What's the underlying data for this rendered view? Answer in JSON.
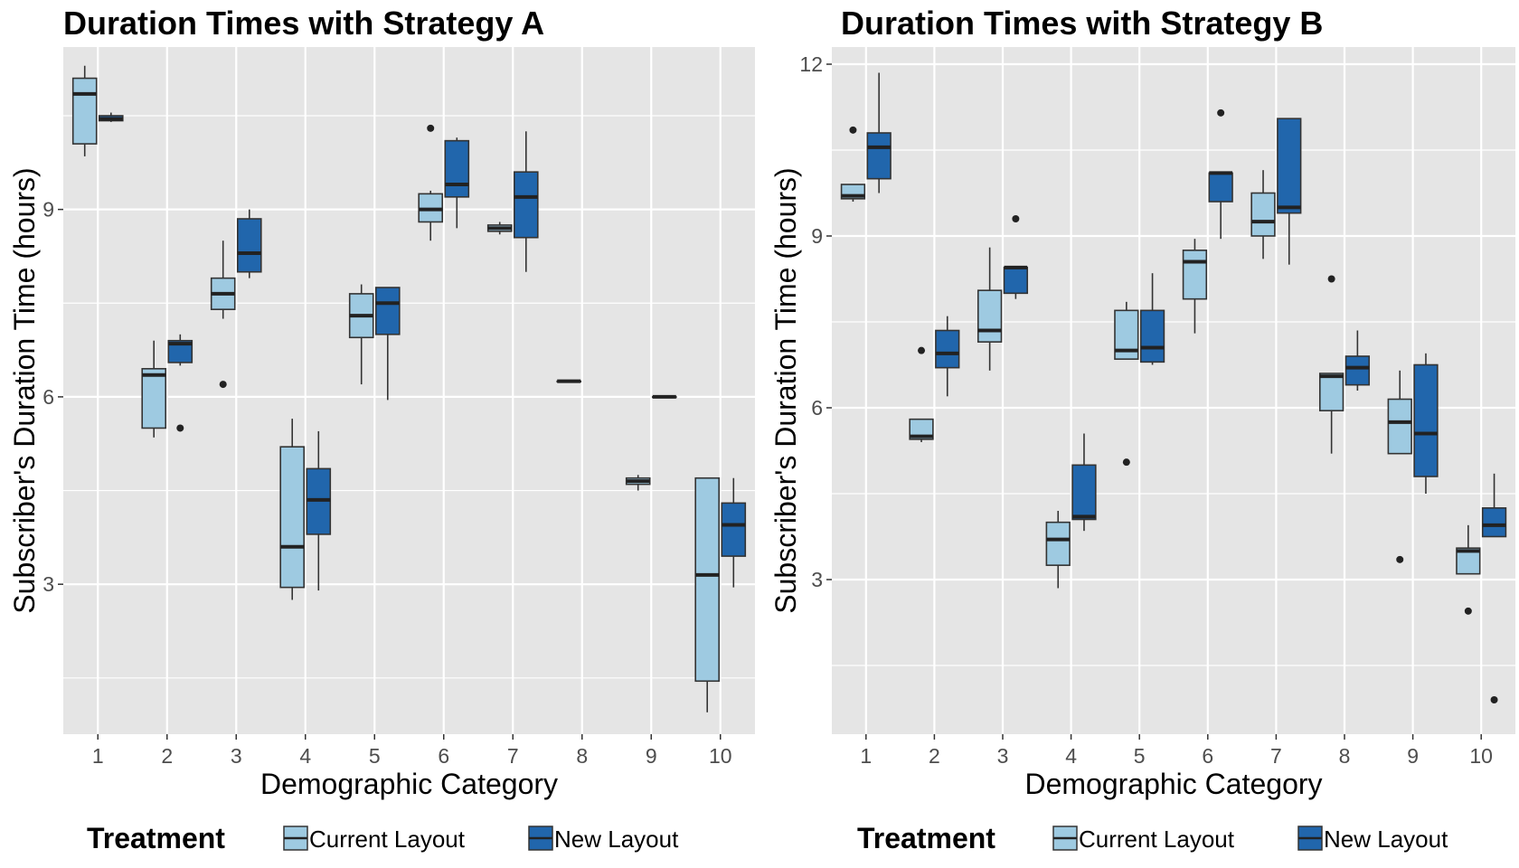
{
  "chart_data": [
    {
      "type": "box",
      "title": "Duration Times with Strategy A",
      "xlabel": "Demographic Category",
      "ylabel": "Subscriber's Duration Time (hours)",
      "ylim": [
        0.6,
        11.6
      ],
      "y_ticks": [
        3,
        6,
        9
      ],
      "grid": true,
      "categories": [
        "1",
        "2",
        "3",
        "4",
        "5",
        "6",
        "7",
        "8",
        "9",
        "10"
      ],
      "series": [
        {
          "name": "Current Layout",
          "boxes": [
            {
              "category": "1",
              "min": 9.85,
              "q1": 10.05,
              "median": 10.85,
              "q3": 11.1,
              "max": 11.3,
              "outliers": []
            },
            {
              "category": "2",
              "min": 5.35,
              "q1": 5.5,
              "median": 6.35,
              "q3": 6.45,
              "max": 6.9,
              "outliers": []
            },
            {
              "category": "3",
              "min": 7.25,
              "q1": 7.4,
              "median": 7.65,
              "q3": 7.9,
              "max": 8.5,
              "outliers": [
                6.2
              ]
            },
            {
              "category": "4",
              "min": 2.75,
              "q1": 2.95,
              "median": 3.6,
              "q3": 5.2,
              "max": 5.65,
              "outliers": []
            },
            {
              "category": "5",
              "min": 6.2,
              "q1": 6.95,
              "median": 7.3,
              "q3": 7.65,
              "max": 7.8,
              "outliers": []
            },
            {
              "category": "6",
              "min": 8.5,
              "q1": 8.8,
              "median": 9.0,
              "q3": 9.25,
              "max": 9.3,
              "outliers": [
                10.3
              ]
            },
            {
              "category": "7",
              "min": 8.6,
              "q1": 8.65,
              "median": 8.7,
              "q3": 8.75,
              "max": 8.8,
              "outliers": []
            },
            {
              "category": "8",
              "min": 6.25,
              "q1": 6.25,
              "median": 6.25,
              "q3": 6.25,
              "max": 6.25,
              "outliers": []
            },
            {
              "category": "9",
              "min": 4.5,
              "q1": 4.6,
              "median": 4.65,
              "q3": 4.7,
              "max": 4.75,
              "outliers": []
            },
            {
              "category": "10",
              "min": 0.95,
              "q1": 1.45,
              "median": 3.15,
              "q3": 4.7,
              "max": 4.7,
              "outliers": []
            }
          ]
        },
        {
          "name": "New Layout",
          "boxes": [
            {
              "category": "1",
              "min": 10.4,
              "q1": 10.42,
              "median": 10.45,
              "q3": 10.5,
              "max": 10.55,
              "outliers": []
            },
            {
              "category": "2",
              "min": 6.5,
              "q1": 6.55,
              "median": 6.85,
              "q3": 6.9,
              "max": 7.0,
              "outliers": [
                5.5
              ]
            },
            {
              "category": "3",
              "min": 7.9,
              "q1": 8.0,
              "median": 8.3,
              "q3": 8.85,
              "max": 9.0,
              "outliers": []
            },
            {
              "category": "4",
              "min": 2.9,
              "q1": 3.8,
              "median": 4.35,
              "q3": 4.85,
              "max": 5.45,
              "outliers": []
            },
            {
              "category": "5",
              "min": 5.95,
              "q1": 7.0,
              "median": 7.5,
              "q3": 7.75,
              "max": 7.75,
              "outliers": []
            },
            {
              "category": "6",
              "min": 8.7,
              "q1": 9.2,
              "median": 9.4,
              "q3": 10.1,
              "max": 10.15,
              "outliers": []
            },
            {
              "category": "7",
              "min": 8.0,
              "q1": 8.55,
              "median": 9.2,
              "q3": 9.6,
              "max": 10.25,
              "outliers": []
            },
            {
              "category": "8",
              "min": null,
              "q1": null,
              "median": null,
              "q3": null,
              "max": null,
              "outliers": []
            },
            {
              "category": "9",
              "min": 6.0,
              "q1": 6.0,
              "median": 6.0,
              "q3": 6.0,
              "max": 6.0,
              "outliers": []
            },
            {
              "category": "10",
              "min": 2.95,
              "q1": 3.45,
              "median": 3.95,
              "q3": 4.3,
              "max": 4.7,
              "outliers": []
            }
          ]
        }
      ]
    },
    {
      "type": "box",
      "title": "Duration Times with Strategy B",
      "xlabel": "Demographic Category",
      "ylabel": "Subscriber's Duration Time (hours)",
      "ylim": [
        0.3,
        12.3
      ],
      "y_ticks": [
        3,
        6,
        9,
        12
      ],
      "grid": true,
      "categories": [
        "1",
        "2",
        "3",
        "4",
        "5",
        "6",
        "7",
        "8",
        "9",
        "10"
      ],
      "series": [
        {
          "name": "Current Layout",
          "boxes": [
            {
              "category": "1",
              "min": 9.6,
              "q1": 9.65,
              "median": 9.7,
              "q3": 9.9,
              "max": 9.9,
              "outliers": [
                10.85
              ]
            },
            {
              "category": "2",
              "min": 5.4,
              "q1": 5.45,
              "median": 5.5,
              "q3": 5.8,
              "max": 5.8,
              "outliers": [
                7.0
              ]
            },
            {
              "category": "3",
              "min": 6.65,
              "q1": 7.15,
              "median": 7.35,
              "q3": 8.05,
              "max": 8.8,
              "outliers": []
            },
            {
              "category": "4",
              "min": 2.85,
              "q1": 3.25,
              "median": 3.7,
              "q3": 4.0,
              "max": 4.2,
              "outliers": []
            },
            {
              "category": "5",
              "min": 6.85,
              "q1": 6.85,
              "median": 7.0,
              "q3": 7.7,
              "max": 7.85,
              "outliers": [
                5.05
              ]
            },
            {
              "category": "6",
              "min": 7.3,
              "q1": 7.9,
              "median": 8.55,
              "q3": 8.75,
              "max": 8.95,
              "outliers": []
            },
            {
              "category": "7",
              "min": 8.6,
              "q1": 9.0,
              "median": 9.25,
              "q3": 9.75,
              "max": 10.15,
              "outliers": []
            },
            {
              "category": "8",
              "min": 5.2,
              "q1": 5.95,
              "median": 6.55,
              "q3": 6.6,
              "max": 6.6,
              "outliers": [
                8.25
              ]
            },
            {
              "category": "9",
              "min": 5.2,
              "q1": 5.2,
              "median": 5.75,
              "q3": 6.15,
              "max": 6.65,
              "outliers": [
                3.35
              ]
            },
            {
              "category": "10",
              "min": 3.1,
              "q1": 3.1,
              "median": 3.5,
              "q3": 3.55,
              "max": 3.95,
              "outliers": [
                2.45
              ]
            }
          ]
        },
        {
          "name": "New Layout",
          "boxes": [
            {
              "category": "1",
              "min": 9.75,
              "q1": 10.0,
              "median": 10.55,
              "q3": 10.8,
              "max": 11.85,
              "outliers": []
            },
            {
              "category": "2",
              "min": 6.2,
              "q1": 6.7,
              "median": 6.95,
              "q3": 7.35,
              "max": 7.6,
              "outliers": []
            },
            {
              "category": "3",
              "min": 7.9,
              "q1": 8.0,
              "median": 8.45,
              "q3": 8.45,
              "max": 8.45,
              "outliers": [
                9.3
              ]
            },
            {
              "category": "4",
              "min": 3.85,
              "q1": 4.05,
              "median": 4.1,
              "q3": 5.0,
              "max": 5.55,
              "outliers": []
            },
            {
              "category": "5",
              "min": 6.75,
              "q1": 6.8,
              "median": 7.05,
              "q3": 7.7,
              "max": 8.35,
              "outliers": []
            },
            {
              "category": "6",
              "min": 8.95,
              "q1": 9.6,
              "median": 10.1,
              "q3": 10.1,
              "max": 10.1,
              "outliers": [
                11.15
              ]
            },
            {
              "category": "7",
              "min": 8.5,
              "q1": 9.4,
              "median": 9.5,
              "q3": 11.05,
              "max": 11.05,
              "outliers": []
            },
            {
              "category": "8",
              "min": 6.3,
              "q1": 6.4,
              "median": 6.7,
              "q3": 6.9,
              "max": 7.35,
              "outliers": []
            },
            {
              "category": "9",
              "min": 4.5,
              "q1": 4.8,
              "median": 5.55,
              "q3": 6.75,
              "max": 6.95,
              "outliers": []
            },
            {
              "category": "10",
              "min": 3.75,
              "q1": 3.75,
              "median": 3.95,
              "q3": 4.25,
              "max": 4.85,
              "outliers": [
                0.9
              ]
            }
          ]
        }
      ]
    }
  ],
  "legend": {
    "title": "Treatment",
    "items": [
      {
        "label": "Current Layout",
        "color": "#9ecae1"
      },
      {
        "label": "New Layout",
        "color": "#2166ac"
      }
    ],
    "position": "bottom"
  },
  "style": {
    "panel_bg": "#e5e5e5",
    "grid_color": "#ffffff",
    "box_stroke": "#333333",
    "median_color": "#222222",
    "current_fill": "#9ecae1",
    "new_fill": "#2166ac"
  }
}
